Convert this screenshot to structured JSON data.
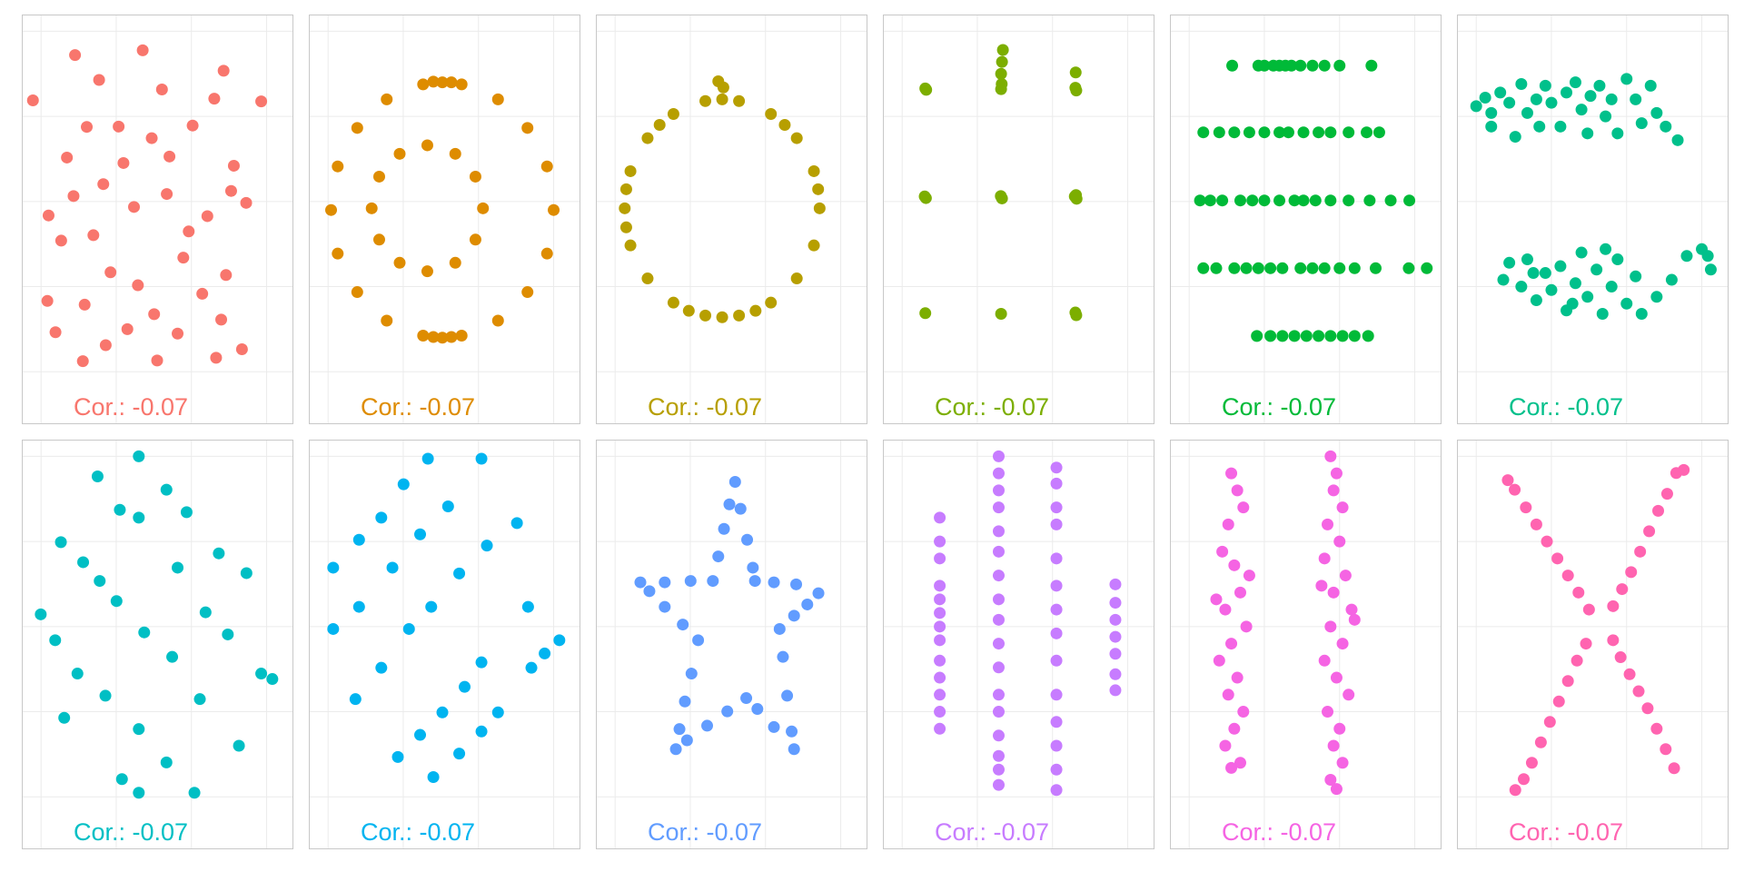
{
  "chart_data": [
    {
      "type": "scatter",
      "color": "#F8766D",
      "annotation": "Cor.: -0.07",
      "xlim": [
        18.6,
        108.9
      ],
      "ylim": [
        -15.4,
        104.9
      ],
      "xticks": [
        25,
        50,
        75,
        100
      ],
      "yticks": [
        0,
        25,
        50,
        75,
        100
      ],
      "grid": true,
      "x": [
        22.3,
        98.2,
        36.3,
        58.8,
        85.7,
        27.1,
        72.3,
        40.2,
        45.7,
        33.6,
        50.8,
        61.8,
        75.4,
        82.6,
        89.1,
        88.2,
        80.3,
        67.7,
        55.9,
        42.4,
        31.7,
        35.8,
        48.1,
        57.2,
        62.6,
        70.4,
        78.6,
        86.5,
        91.8,
        83.2,
        63.6,
        46.5,
        38.9,
        53.7,
        29.8,
        74.1,
        44.3,
        65.2,
        52.4,
        39.5,
        84.9,
        66.8,
        27.5,
        93.2
      ],
      "values": [
        79.7,
        79.4,
        93,
        94.4,
        88.4,
        20.8,
        33.5,
        71.9,
        55.1,
        62.9,
        72,
        68.6,
        72.3,
        80.2,
        60.5,
        53.1,
        45.7,
        63.2,
        48.4,
        40.1,
        38.5,
        51.6,
        29.2,
        25.4,
        16.9,
        11.2,
        22.9,
        28.4,
        6.6,
        4.1,
        3.3,
        7.8,
        3.1,
        12.5,
        11.6,
        41.2,
        85.7,
        82.9,
        61.3,
        19.7,
        15.3,
        52.2,
        45.9,
        49.6
      ]
    },
    {
      "type": "scatter",
      "color": "#DE8C00",
      "annotation": "Cor.: -0.07",
      "xlim": [
        18.6,
        108.9
      ],
      "ylim": [
        -15.4,
        104.9
      ],
      "xticks": [
        25,
        50,
        75,
        100
      ],
      "yticks": [
        0,
        25,
        50,
        75,
        100
      ],
      "grid": true,
      "x": [
        100,
        97.8,
        91.3,
        81.5,
        69.4,
        56.6,
        44.5,
        34.7,
        28.2,
        26,
        28.2,
        34.7,
        44.5,
        56.6,
        69.4,
        81.5,
        91.3,
        97.8,
        63,
        60,
        66,
        63,
        60,
        66,
        76.5,
        74,
        67.3,
        58,
        48.8,
        42,
        39.5,
        42,
        48.8,
        58,
        67.3,
        74
      ],
      "values": [
        47.5,
        60.3,
        71.6,
        80,
        84.4,
        84.4,
        80,
        71.6,
        60.3,
        47.5,
        34.7,
        23.4,
        15,
        10.6,
        10.6,
        15,
        23.4,
        34.7,
        85,
        85.2,
        85,
        10,
        10.2,
        10.2,
        48,
        57.3,
        64,
        66.5,
        64,
        57.3,
        48,
        38.8,
        32,
        29.5,
        32,
        38.8
      ]
    },
    {
      "type": "scatter",
      "color": "#B79F00",
      "annotation": "Cor.: -0.07",
      "xlim": [
        18.6,
        108.9
      ],
      "ylim": [
        -15.4,
        104.9
      ],
      "xticks": [
        25,
        50,
        75,
        100
      ],
      "yticks": [
        0,
        25,
        50,
        75,
        100
      ],
      "grid": true,
      "x": [
        93,
        91.1,
        85.4,
        76.8,
        66.2,
        55,
        44.4,
        35.8,
        30.1,
        28.2,
        30.1,
        35.8,
        44.4,
        55,
        66.2,
        76.8,
        85.4,
        91.1,
        59.3,
        61,
        60.6,
        60.6,
        92.5,
        81.4,
        39.8,
        28.7,
        28.7,
        49.5,
        71.7
      ],
      "values": [
        48,
        58.9,
        68.6,
        75.7,
        79.5,
        79.5,
        75.7,
        68.6,
        58.9,
        48,
        37.1,
        27.4,
        20.3,
        16.5,
        16.5,
        20.3,
        27.4,
        37.1,
        85.3,
        83.5,
        80,
        16,
        53.6,
        72.5,
        72.5,
        53.6,
        42.4,
        17.9,
        17.9
      ]
    },
    {
      "type": "scatter",
      "color": "#7CAE00",
      "annotation": "Cor.: -0.07",
      "xlim": [
        18.6,
        108.9
      ],
      "ylim": [
        -15.4,
        104.9
      ],
      "xticks": [
        25,
        50,
        75,
        100
      ],
      "yticks": [
        0,
        25,
        50,
        75,
        100
      ],
      "grid": true,
      "x": [
        32.7,
        33,
        57.9,
        58.1,
        58.5,
        58.2,
        57.9,
        82.6,
        82.9,
        82.7,
        32.5,
        32.9,
        57.8,
        58.2,
        82.4,
        83,
        82.8,
        32.7,
        57.9,
        82.6,
        82.9
      ],
      "values": [
        83.2,
        82.8,
        83,
        84.5,
        94.5,
        91,
        87.5,
        83.4,
        82.6,
        87.9,
        51.5,
        51,
        51.6,
        50.9,
        51.5,
        50.8,
        51.9,
        17.2,
        17,
        17.4,
        16.6
      ]
    },
    {
      "type": "scatter",
      "color": "#00BA38",
      "annotation": "Cor.: -0.07",
      "xlim": [
        18.6,
        108.9
      ],
      "ylim": [
        -15.4,
        104.9
      ],
      "xticks": [
        25,
        50,
        75,
        100
      ],
      "yticks": [
        0,
        25,
        50,
        75,
        100
      ],
      "grid": true,
      "x": [
        39.3,
        48,
        50,
        53,
        55,
        57,
        59,
        62,
        66,
        70,
        75,
        85.6,
        29.7,
        35,
        40,
        45,
        50,
        55,
        58,
        63,
        68,
        72,
        78,
        84,
        88.2,
        28.6,
        32,
        36,
        42,
        46,
        50,
        55,
        60,
        63,
        67,
        72,
        78,
        85,
        92,
        98.2,
        29.7,
        34,
        40,
        44,
        48,
        52,
        56,
        62,
        66,
        70,
        75,
        80,
        87,
        98,
        104,
        47.5,
        52,
        56,
        60,
        64,
        68,
        72,
        76,
        80,
        84.5
      ],
      "values": [
        89.9,
        89.9,
        89.9,
        89.9,
        89.9,
        89.9,
        89.9,
        89.9,
        89.9,
        89.9,
        89.9,
        89.9,
        70.3,
        70.3,
        70.3,
        70.3,
        70.3,
        70.3,
        70.3,
        70.3,
        70.3,
        70.3,
        70.3,
        70.3,
        70.3,
        50.3,
        50.3,
        50.3,
        50.3,
        50.3,
        50.3,
        50.3,
        50.3,
        50.3,
        50.3,
        50.3,
        50.3,
        50.3,
        50.3,
        50.3,
        30.4,
        30.4,
        30.4,
        30.4,
        30.4,
        30.4,
        30.4,
        30.4,
        30.4,
        30.4,
        30.4,
        30.4,
        30.4,
        30.4,
        30.4,
        10.5,
        10.5,
        10.5,
        10.5,
        10.5,
        10.5,
        10.5,
        10.5,
        10.5,
        10.5
      ]
    },
    {
      "type": "scatter",
      "color": "#00C08B",
      "annotation": "Cor.: -0.07",
      "xlim": [
        18.6,
        108.9
      ],
      "ylim": [
        -15.4,
        104.9
      ],
      "xticks": [
        25,
        50,
        75,
        100
      ],
      "yticks": [
        0,
        25,
        50,
        75,
        100
      ],
      "grid": true,
      "x": [
        25,
        28,
        30,
        33,
        36,
        40,
        42,
        45,
        48,
        50,
        53,
        55,
        58,
        60,
        63,
        66,
        68,
        70,
        72,
        75,
        78,
        80,
        83,
        85,
        88,
        92,
        38,
        46,
        62,
        30,
        34,
        36,
        40,
        42,
        45,
        48,
        50,
        53,
        55,
        58,
        60,
        62,
        65,
        67,
        70,
        72,
        75,
        78,
        80,
        85,
        90,
        95,
        100,
        103,
        102,
        68,
        57,
        44
      ],
      "values": [
        78,
        80.5,
        76,
        82,
        79,
        84.5,
        76,
        80,
        84,
        79,
        72,
        82,
        85,
        77,
        81,
        84,
        75,
        80,
        70,
        86,
        80,
        73,
        84,
        76,
        72,
        68,
        69,
        72,
        70,
        72,
        27,
        32,
        25,
        33,
        21,
        29,
        24,
        31,
        18,
        26,
        35,
        22,
        30,
        17,
        25,
        33,
        20,
        28,
        17,
        22,
        27,
        34,
        36,
        30,
        34,
        36,
        20,
        29
      ]
    },
    {
      "type": "scatter",
      "color": "#00BFC4",
      "annotation": "Cor.: -0.07",
      "xlim": [
        18.6,
        108.9
      ],
      "ylim": [
        -15.4,
        104.9
      ],
      "xticks": [
        25,
        50,
        75,
        100
      ],
      "yticks": [
        0,
        25,
        50,
        75,
        100
      ],
      "grid": true,
      "x": [
        57.5,
        66.7,
        73.4,
        84.1,
        93.3,
        43.8,
        51.2,
        57.5,
        70.4,
        79.7,
        87.1,
        31.6,
        39,
        44.5,
        50.1,
        59.3,
        68.6,
        77.8,
        90.8,
        24.9,
        29.7,
        37.1,
        46.4,
        57.5,
        66.7,
        76,
        32.7,
        51.9,
        57.5,
        98.2,
        101.9
      ],
      "values": [
        100,
        90.2,
        83.6,
        71.5,
        65.7,
        94.1,
        84.3,
        82,
        67.3,
        54.2,
        47.7,
        74.8,
        68.9,
        63.4,
        57.5,
        48.3,
        41.1,
        28.7,
        15,
        53.6,
        46,
        36.2,
        29.7,
        19.9,
        10.1,
        1.2,
        23.2,
        5.2,
        1.2,
        36.2,
        34.6
      ]
    },
    {
      "type": "scatter",
      "color": "#00B4F0",
      "annotation": "Cor.: -0.07",
      "xlim": [
        18.6,
        108.9
      ],
      "ylim": [
        -15.4,
        104.9
      ],
      "xticks": [
        25,
        50,
        75,
        100
      ],
      "yticks": [
        0,
        25,
        50,
        75,
        100
      ],
      "grid": true,
      "x": [
        26.7,
        35.3,
        42.7,
        50.1,
        58.2,
        26.7,
        35.3,
        46.4,
        55.6,
        64.9,
        76,
        34.1,
        42.7,
        51.9,
        59.3,
        68.6,
        77.8,
        87.8,
        48.2,
        55.6,
        63,
        70.4,
        76,
        60,
        68.6,
        76,
        81.5,
        92.6,
        97,
        101.9,
        91.5
      ],
      "values": [
        67.3,
        75.5,
        82,
        91.8,
        99.3,
        49.3,
        55.8,
        67.3,
        77.1,
        85.3,
        99.3,
        28.7,
        37.9,
        49.3,
        55.8,
        65.6,
        73.8,
        80.4,
        11.7,
        18.2,
        24.8,
        32.3,
        39.5,
        5.8,
        12.7,
        19.2,
        24.8,
        37.9,
        42.1,
        46,
        55.8
      ]
    },
    {
      "type": "scatter",
      "color": "#619CFF",
      "annotation": "Cor.: -0.07",
      "xlim": [
        18.6,
        108.9
      ],
      "ylim": [
        -15.4,
        104.9
      ],
      "xticks": [
        25,
        50,
        75,
        100
      ],
      "yticks": [
        0,
        25,
        50,
        75,
        100
      ],
      "grid": true,
      "x": [
        64.9,
        66.7,
        68.9,
        70.8,
        71.5,
        77.8,
        85.2,
        92.6,
        88.9,
        84.5,
        79.7,
        80.8,
        82.2,
        83.7,
        84.5,
        77.8,
        72.3,
        68.6,
        62.3,
        55.6,
        48.9,
        45.2,
        46.4,
        48.2,
        50.4,
        52.6,
        47.5,
        41.5,
        36.4,
        33.4,
        41.5,
        50.1,
        57.5,
        59.3,
        61.2,
        63
      ],
      "values": [
        92.5,
        84.6,
        75.5,
        67.3,
        63.4,
        63,
        62.4,
        59.8,
        56.5,
        53.2,
        49.3,
        41.1,
        29.7,
        19.2,
        14,
        20.5,
        25.8,
        29,
        25.1,
        20.9,
        16.6,
        14,
        19.9,
        28,
        36.2,
        46,
        50.6,
        55.8,
        60.4,
        63,
        63,
        63.4,
        63.4,
        70.6,
        78.7,
        85.9
      ]
    },
    {
      "type": "scatter",
      "color": "#C77CFF",
      "annotation": "Cor.: -0.07",
      "xlim": [
        18.6,
        108.9
      ],
      "ylim": [
        -15.4,
        104.9
      ],
      "xticks": [
        25,
        50,
        75,
        100
      ],
      "yticks": [
        0,
        25,
        50,
        75,
        100
      ],
      "grid": true,
      "x": [
        37.5,
        37.5,
        37.5,
        37.5,
        37.5,
        37.5,
        37.5,
        37.5,
        37.5,
        37.5,
        37.5,
        37.5,
        37.5,
        57.1,
        57.1,
        57.1,
        57.1,
        57.1,
        57.1,
        57.1,
        57.1,
        57.1,
        57.1,
        57.1,
        57.1,
        57.1,
        57.1,
        57.1,
        57.1,
        57.1,
        76.3,
        76.3,
        76.3,
        76.3,
        76.3,
        76.3,
        76.3,
        76.3,
        76.3,
        76.3,
        76.3,
        76.3,
        76.3,
        76.3,
        95.9,
        95.9,
        95.9,
        95.9,
        95.9,
        95.9,
        95.9
      ],
      "values": [
        82,
        75,
        70,
        62,
        58,
        54,
        50,
        46,
        40,
        35,
        30,
        25,
        20,
        100,
        95,
        90,
        85,
        78,
        72,
        65,
        58,
        52,
        45,
        38,
        30,
        25,
        18,
        12,
        8,
        3.5,
        96.7,
        92,
        85,
        80,
        70,
        62,
        55,
        48,
        40,
        30,
        22,
        15,
        8,
        2,
        62.4,
        57,
        52,
        47,
        42,
        36,
        31.3
      ]
    },
    {
      "type": "scatter",
      "color": "#F564E3",
      "annotation": "Cor.: -0.07",
      "xlim": [
        18.6,
        108.9
      ],
      "ylim": [
        -15.4,
        104.9
      ],
      "xticks": [
        25,
        50,
        75,
        100
      ],
      "yticks": [
        0,
        25,
        50,
        75,
        100
      ],
      "grid": true,
      "x": [
        39,
        41,
        43,
        38,
        36,
        40,
        42,
        37,
        44,
        39,
        35,
        41,
        38,
        43,
        40,
        37,
        42,
        39,
        45,
        34,
        72,
        74,
        73,
        76,
        71,
        75,
        70,
        77,
        73,
        79,
        72,
        76,
        70,
        74,
        78,
        71,
        75,
        73,
        76,
        72,
        74,
        80,
        69
      ],
      "values": [
        95,
        90,
        85,
        80,
        72,
        68,
        60,
        55,
        50,
        45,
        40,
        35,
        30,
        25,
        20,
        15,
        10,
        8.5,
        65,
        58,
        100,
        95,
        90,
        85,
        80,
        75,
        70,
        65,
        60,
        55,
        50,
        45,
        40,
        35,
        30,
        25,
        20,
        15,
        10,
        5,
        2.3,
        52,
        62
      ]
    },
    {
      "type": "scatter",
      "color": "#FF64B0",
      "annotation": "Cor.: -0.07",
      "xlim": [
        18.6,
        108.9
      ],
      "ylim": [
        -15.4,
        104.9
      ],
      "xticks": [
        25,
        50,
        75,
        100
      ],
      "yticks": [
        0,
        25,
        50,
        75,
        100
      ],
      "grid": true,
      "x": [
        37.8,
        41.5,
        45,
        48.5,
        52,
        55.5,
        59,
        62.5,
        91.5,
        88.5,
        85.5,
        82.5,
        79.5,
        76.5,
        73.5,
        70.5,
        40.8,
        43.5,
        46.5,
        49.5,
        52.5,
        55.5,
        58.5,
        61.5,
        90.8,
        88,
        85,
        82,
        79,
        76,
        73,
        70.5,
        35.5,
        94,
        38
      ],
      "values": [
        90.2,
        85,
        80,
        75,
        70,
        65,
        60,
        55,
        95.1,
        89,
        84,
        78,
        72,
        66,
        61,
        56,
        5.2,
        10,
        16,
        22,
        28,
        34,
        40,
        45,
        8.4,
        14,
        20,
        26,
        31,
        36,
        41,
        46,
        93,
        96,
        2
      ]
    }
  ]
}
